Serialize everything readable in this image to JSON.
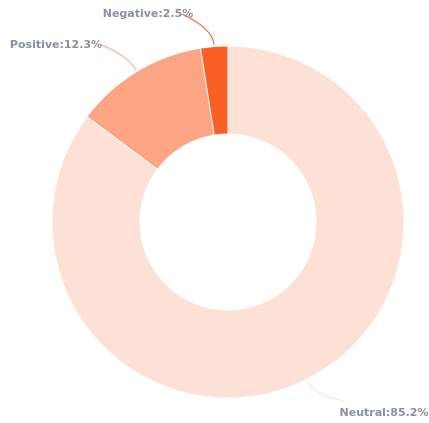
{
  "chart_data": {
    "type": "donut",
    "values": [
      85.2,
      12.3,
      2.5
    ],
    "value_labels": [
      "Neutral:85.2%",
      "Positive:12.3%",
      "Negative:2.5%"
    ],
    "colors": [
      "#fde0d6",
      "#fca584",
      "#fa5f26"
    ]
  }
}
